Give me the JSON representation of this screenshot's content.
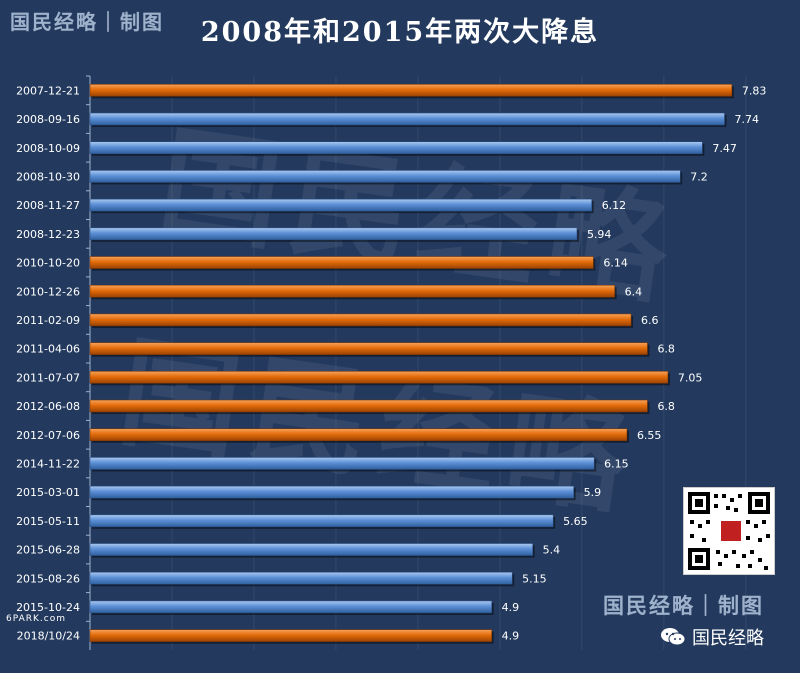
{
  "header": {
    "brand": "国民经略｜制图",
    "title": "2008年和2015年两次大降息"
  },
  "watermark": {
    "text": "国民经略"
  },
  "chart_data": {
    "type": "bar",
    "orientation": "horizontal",
    "categories": [
      "2007-12-21",
      "2008-09-16",
      "2008-10-09",
      "2008-10-30",
      "2008-11-27",
      "2008-12-23",
      "2010-10-20",
      "2010-12-26",
      "2011-02-09",
      "2011-04-06",
      "2011-07-07",
      "2012-06-08",
      "2012-07-06",
      "2014-11-22",
      "2015-03-01",
      "2015-05-11",
      "2015-06-28",
      "2015-08-26",
      "2015-10-24",
      "2018/10/24"
    ],
    "values": [
      7.83,
      7.74,
      7.47,
      7.2,
      6.12,
      5.94,
      6.14,
      6.4,
      6.6,
      6.8,
      7.05,
      6.8,
      6.55,
      6.15,
      5.9,
      5.65,
      5.4,
      5.15,
      4.9,
      4.9
    ],
    "bar_colors": [
      "orange",
      "blue",
      "blue",
      "blue",
      "blue",
      "blue",
      "orange",
      "orange",
      "orange",
      "orange",
      "orange",
      "orange",
      "orange",
      "blue",
      "blue",
      "blue",
      "blue",
      "blue",
      "blue",
      "orange"
    ],
    "palette": {
      "orange": "#e36c0a",
      "blue": "#5b8fd6"
    },
    "xlim": [
      0,
      8.6
    ],
    "grid": true,
    "title": "2008年和2015年两次大降息"
  },
  "footer": {
    "brand": "国民经略｜制图",
    "wechat_name": "国民经略",
    "sixpark": "6PARK.com"
  },
  "colors": {
    "background": "#233a5e"
  }
}
